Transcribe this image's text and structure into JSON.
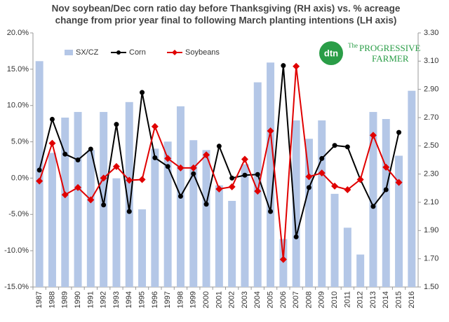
{
  "chart_data": {
    "type": "bar",
    "title": [
      "Nov soybean/Dec corn ratio day before Thanksgiving (RH axis)  vs. % acreage",
      "change from prior year final to following March planting intentions (LH axis)"
    ],
    "categories": [
      "1987",
      "1988",
      "1989",
      "1990",
      "1991",
      "1992",
      "1993",
      "1994",
      "1995",
      "1996",
      "1997",
      "1998",
      "1999",
      "2000",
      "2001",
      "2002",
      "2003",
      "2004",
      "2005",
      "2006",
      "2007",
      "2008",
      "2009",
      "2010",
      "2011",
      "2012",
      "2013",
      "2014",
      "2015",
      "2016"
    ],
    "series": [
      {
        "name": "SX/CZ",
        "type": "bar",
        "axis": "y2",
        "color": "#b4c7e7",
        "values": [
          3.1,
          2.45,
          2.7,
          2.74,
          2.47,
          2.74,
          2.27,
          2.81,
          2.05,
          2.48,
          2.53,
          2.78,
          2.54,
          2.47,
          2.22,
          2.11,
          2.37,
          2.95,
          3.09,
          1.84,
          2.68,
          2.55,
          2.68,
          2.16,
          1.92,
          1.73,
          2.74,
          2.69,
          2.43,
          2.89
        ]
      },
      {
        "name": "Corn",
        "type": "line",
        "marker": "circle",
        "color": "#000000",
        "values": [
          1.1,
          8.1,
          3.3,
          2.5,
          4.0,
          -3.7,
          7.4,
          -4.6,
          11.8,
          2.8,
          1.6,
          -2.5,
          0.6,
          -3.6,
          4.4,
          0.0,
          0.4,
          0.5,
          -4.6,
          15.5,
          -8.1,
          -1.3,
          2.7,
          4.5,
          4.3,
          -0.2,
          -3.9,
          -1.6,
          6.3,
          null
        ]
      },
      {
        "name": "Soybeans",
        "type": "line",
        "marker": "diamond",
        "color": "#e00000",
        "values": [
          -0.4,
          4.8,
          -2.3,
          -1.3,
          -3.0,
          0.0,
          1.6,
          -0.3,
          -0.2,
          7.1,
          2.7,
          1.4,
          1.4,
          3.2,
          -1.5,
          -1.2,
          2.6,
          -1.8,
          6.5,
          -11.2,
          15.4,
          0.2,
          0.7,
          -1.1,
          -1.6,
          -0.2,
          5.9,
          1.5,
          -0.6,
          null
        ]
      }
    ],
    "ylim": [
      -15,
      20
    ],
    "yticks": [
      {
        "value": -15,
        "label": "-15.0%"
      },
      {
        "value": -10,
        "label": "-10.0%"
      },
      {
        "value": -5,
        "label": "-5.0%"
      },
      {
        "value": 0,
        "label": "0.0%"
      },
      {
        "value": 5,
        "label": "5.0%"
      },
      {
        "value": 10,
        "label": "10.0%"
      },
      {
        "value": 15,
        "label": "15.0%"
      },
      {
        "value": 20,
        "label": "20.0%"
      }
    ],
    "y2lim": [
      1.5,
      3.3
    ],
    "y2ticks": [
      {
        "value": 1.5,
        "label": "1.50"
      },
      {
        "value": 1.7,
        "label": "1.70"
      },
      {
        "value": 1.9,
        "label": "1.90"
      },
      {
        "value": 2.1,
        "label": "2.10"
      },
      {
        "value": 2.3,
        "label": "2.30"
      },
      {
        "value": 2.5,
        "label": "2.50"
      },
      {
        "value": 2.7,
        "label": "2.70"
      },
      {
        "value": 2.9,
        "label": "2.90"
      },
      {
        "value": 3.1,
        "label": "3.10"
      },
      {
        "value": 3.3,
        "label": "3.30"
      }
    ],
    "legend": "top",
    "annotations": [
      "dtn",
      "The",
      "PROGRESSIVE",
      "FARMER"
    ]
  }
}
